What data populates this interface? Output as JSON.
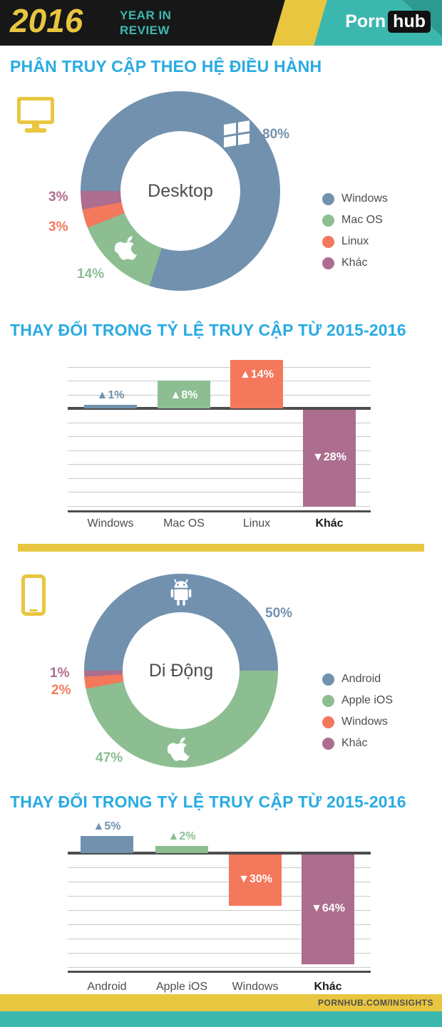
{
  "header": {
    "year": "2016",
    "tagline_line1": "YEAR IN",
    "tagline_line2": "REVIEW",
    "brand_porn": "Porn",
    "brand_hub": "hub"
  },
  "sections": {
    "os_share_title": "PHÂN TRUY CẬP THEO HỆ ĐIỀU HÀNH"
  },
  "footer": {
    "insights": "PORNHUB.COM/INSIGHTS"
  },
  "colors": {
    "blue": "#7191ae",
    "green": "#8cbe92",
    "orange": "#f4785c",
    "purple": "#ad6d8e",
    "cyan": "#29abe2",
    "yellow": "#e8c63f",
    "teal": "#3cb7ae",
    "black": "#171717"
  },
  "chart_data": [
    {
      "id": "desktop-os-share",
      "type": "pie",
      "donut": true,
      "center_label": "Desktop",
      "labels": [
        "Windows",
        "Mac OS",
        "Linux",
        "Khác"
      ],
      "values": [
        80,
        14,
        3,
        3
      ],
      "value_labels": [
        "80%",
        "14%",
        "3%",
        "3%"
      ],
      "colors": [
        "#7191ae",
        "#8cbe92",
        "#f4785c",
        "#ad6d8e"
      ],
      "legend_position": "right",
      "start_angle_deg": 270
    },
    {
      "id": "desktop-change-2015-2016",
      "type": "bar",
      "title": "THAY ĐỔI TRONG TỶ LỆ TRUY CẬP TỪ 2015-2016",
      "categories": [
        "Windows",
        "Mac OS",
        "Linux",
        "Khác"
      ],
      "values": [
        1,
        8,
        14,
        -28
      ],
      "value_labels": [
        "▲1%",
        "▲8%",
        "▲14%",
        "▼28%"
      ],
      "colors": [
        "#7191ae",
        "#8cbe92",
        "#f4785c",
        "#ad6d8e"
      ],
      "unit": "%",
      "baseline": 0,
      "grid": true,
      "ylim": [
        -30,
        15
      ]
    },
    {
      "id": "mobile-os-share",
      "type": "pie",
      "donut": true,
      "center_label": "Di Động",
      "labels": [
        "Android",
        "Apple iOS",
        "Windows",
        "Khác"
      ],
      "values": [
        50,
        47,
        2,
        1
      ],
      "value_labels": [
        "50%",
        "47%",
        "2%",
        "1%"
      ],
      "colors": [
        "#7191ae",
        "#8cbe92",
        "#f4785c",
        "#ad6d8e"
      ],
      "legend_position": "right",
      "start_angle_deg": 270
    },
    {
      "id": "mobile-change-2015-2016",
      "type": "bar",
      "title": "THAY ĐỔI TRONG TỶ LỆ TRUY CẬP TỪ 2015-2016",
      "categories": [
        "Android",
        "Apple iOS",
        "Windows",
        "Khác"
      ],
      "values": [
        5,
        2,
        -30,
        -64
      ],
      "value_labels": [
        "▲5%",
        "▲2%",
        "▼30%",
        "▼64%"
      ],
      "colors": [
        "#7191ae",
        "#8cbe92",
        "#f4785c",
        "#ad6d8e"
      ],
      "unit": "%",
      "baseline": 0,
      "grid": true,
      "ylim": [
        -70,
        10
      ]
    }
  ]
}
